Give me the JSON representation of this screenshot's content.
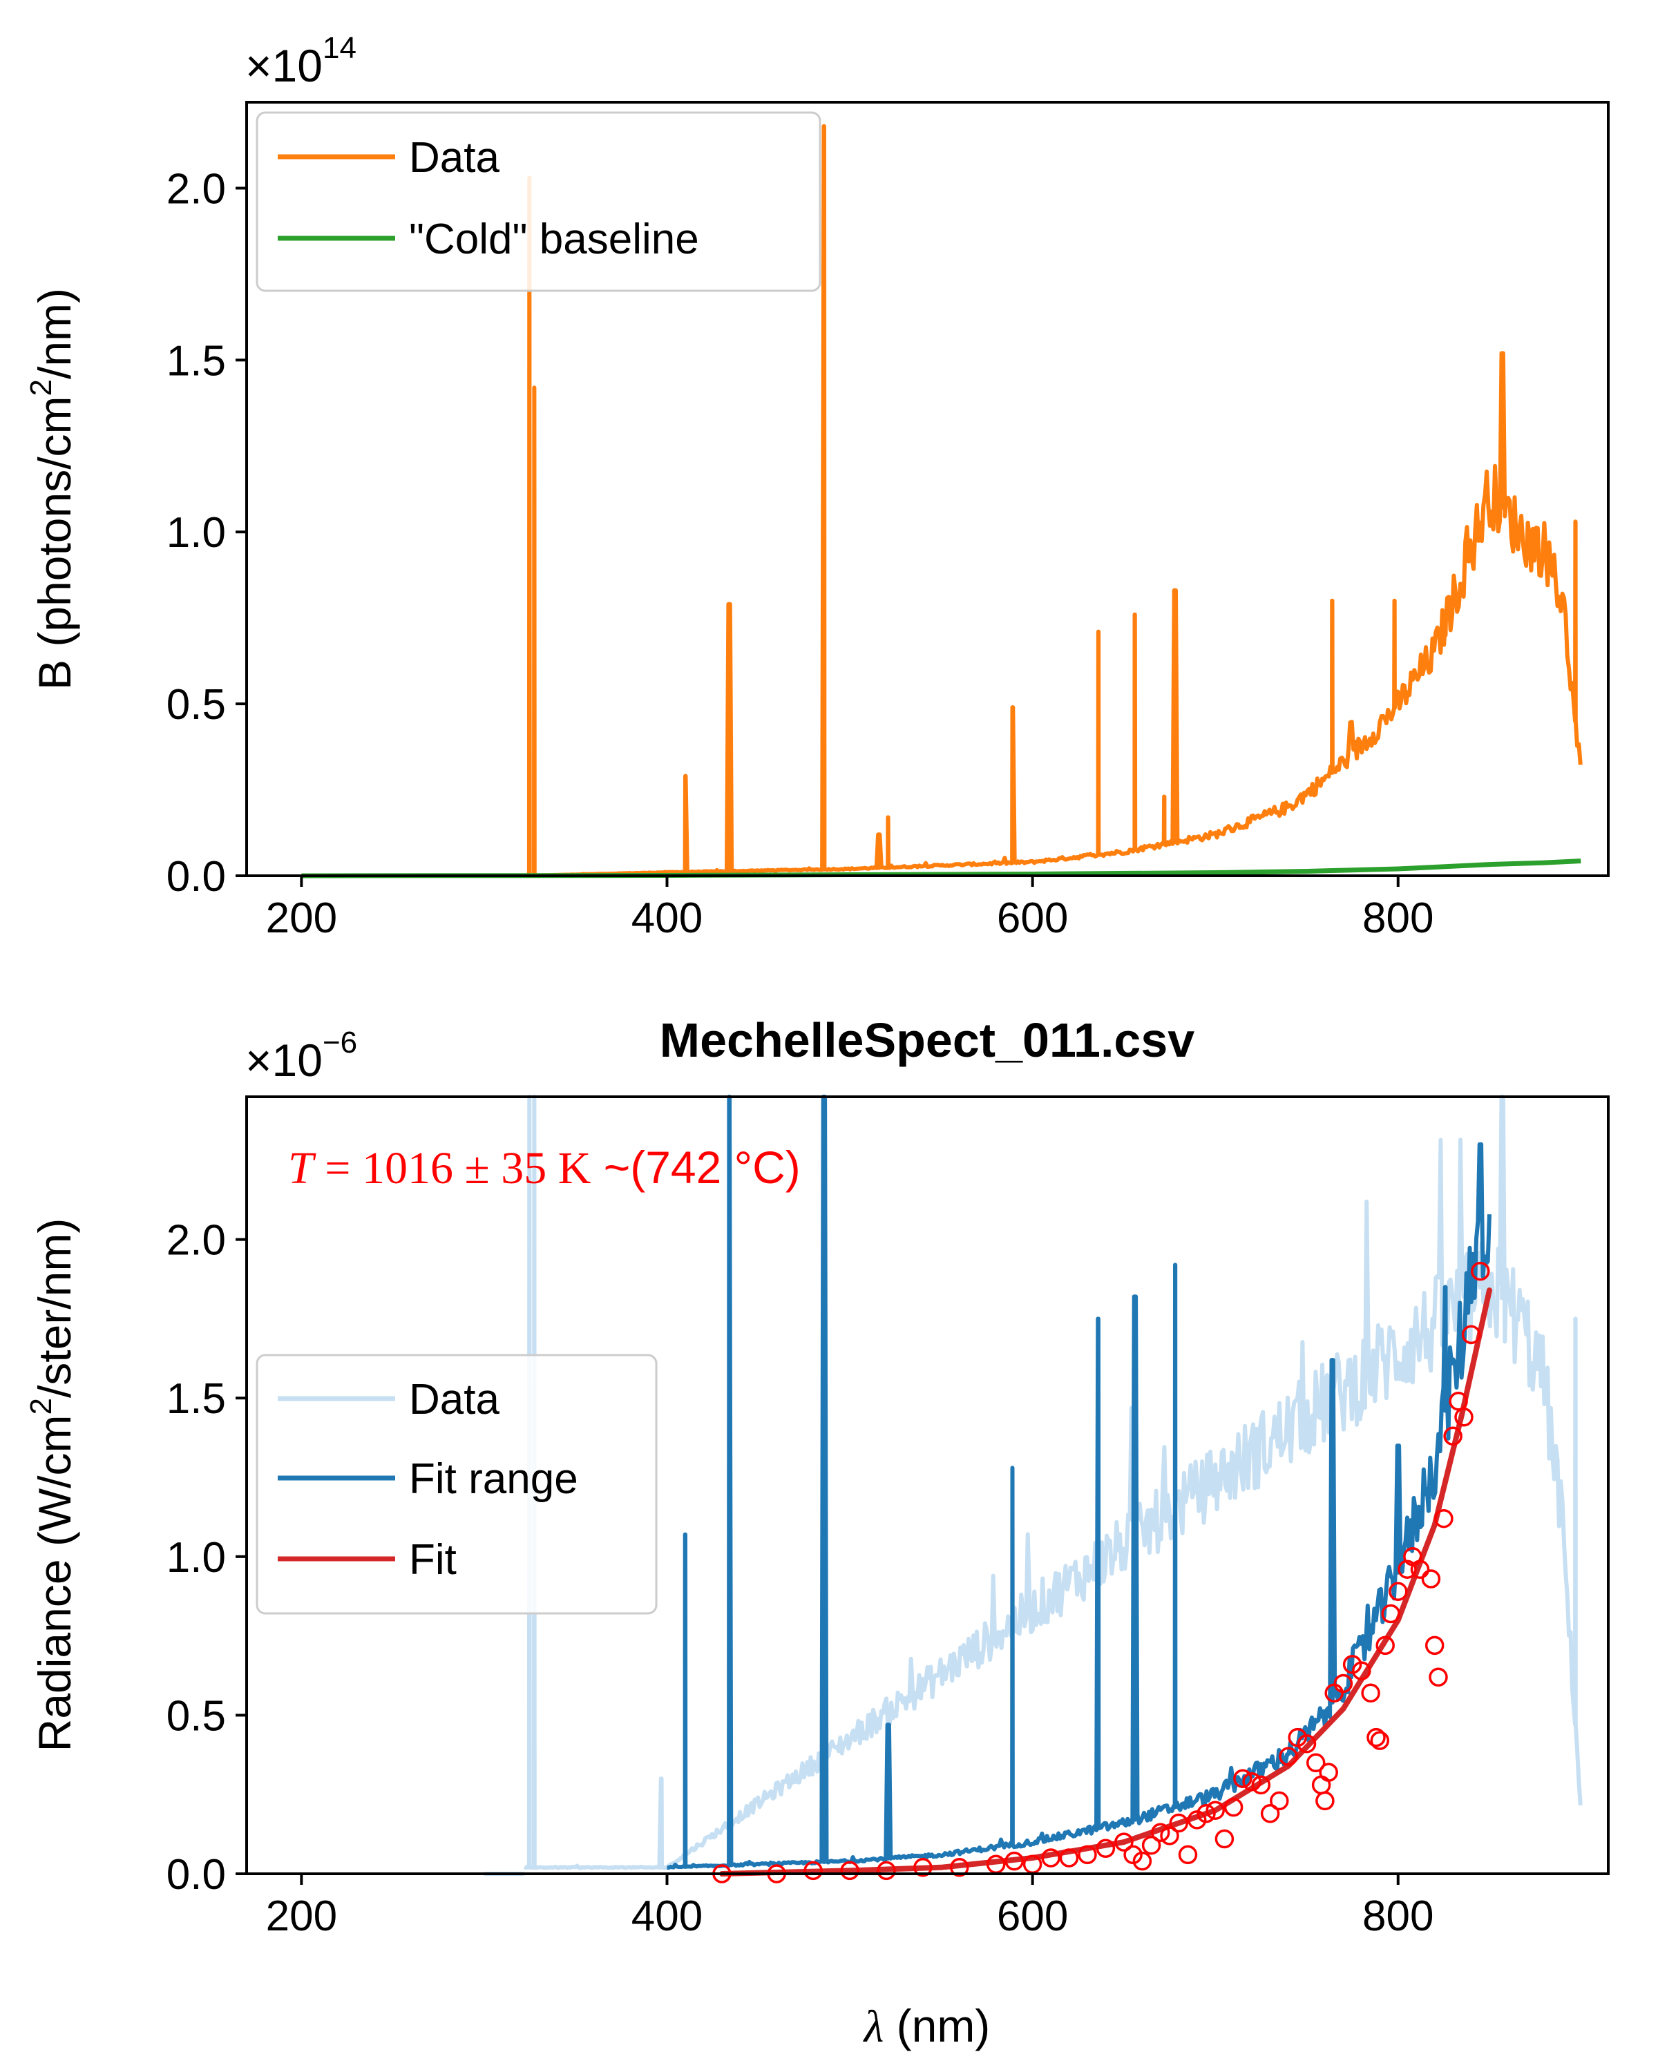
{
  "chart_data": [
    {
      "type": "line",
      "title": "",
      "xlabel": "",
      "ylabel": "B (photons/cm² /nm)",
      "ylabel_parts": [
        "B (photons/cm",
        "2",
        "/nm)"
      ],
      "y_multiplier_label": [
        "×10",
        "14"
      ],
      "xlim": [
        170,
        915
      ],
      "ylim": [
        0,
        2.25
      ],
      "xticks": [
        "200",
        "400",
        "600",
        "800"
      ],
      "yticks": [
        "0.0",
        "0.5",
        "1.0",
        "1.5",
        "2.0"
      ],
      "grid": false,
      "legend_position": "top-left",
      "series": [
        {
          "name": "Data",
          "color": "#ff7f0e",
          "baseline_trend": [
            [
              322,
              0.0
            ],
            [
              400,
              0.01
            ],
            [
              500,
              0.02
            ],
            [
              600,
              0.04
            ],
            [
              650,
              0.07
            ],
            [
              700,
              0.12
            ],
            [
              740,
              0.2
            ],
            [
              760,
              0.28
            ],
            [
              780,
              0.38
            ],
            [
              800,
              0.5
            ],
            [
              820,
              0.65
            ],
            [
              840,
              0.95
            ],
            [
              850,
              1.12
            ],
            [
              860,
              1.05
            ],
            [
              870,
              0.98
            ],
            [
              880,
              0.95
            ],
            [
              890,
              0.8
            ],
            [
              900,
              0.3
            ]
          ],
          "emission_lines": [
            [
              324.7,
              2.03
            ],
            [
              327.4,
              1.42
            ],
            [
              410,
              0.29
            ],
            [
              434,
              0.79
            ],
            [
              486,
              2.18
            ],
            [
              516,
              0.12
            ],
            [
              521,
              0.17
            ],
            [
              589,
              0.49
            ],
            [
              636,
              0.71
            ],
            [
              656,
              0.76
            ],
            [
              672,
              0.23
            ],
            [
              678,
              0.83
            ],
            [
              764,
              0.8
            ],
            [
              798,
              0.8
            ],
            [
              826,
              0.7
            ],
            [
              857,
              1.52
            ],
            [
              897,
              1.03
            ]
          ]
        },
        {
          "name": "\"Cold\" baseline",
          "color": "#2ca02c",
          "points": [
            [
              200,
              0.0
            ],
            [
              400,
              0.001
            ],
            [
              500,
              0.003
            ],
            [
              600,
              0.005
            ],
            [
              700,
              0.009
            ],
            [
              750,
              0.013
            ],
            [
              800,
              0.02
            ],
            [
              850,
              0.033
            ],
            [
              880,
              0.038
            ],
            [
              900,
              0.043
            ]
          ]
        }
      ]
    },
    {
      "type": "line",
      "title": "MechelleSpect_011.csv",
      "xlabel": "λ (nm)",
      "xlabel_parts": [
        "λ",
        " (nm)"
      ],
      "ylabel": "Radiance (W/cm² /ster/nm)",
      "ylabel_parts": [
        "Radiance (W/cm",
        "2",
        "/ster/nm)"
      ],
      "y_multiplier_label": [
        "×10",
        "−6"
      ],
      "xlim": [
        170,
        915
      ],
      "ylim": [
        0,
        2.45
      ],
      "xticks": [
        "200",
        "400",
        "600",
        "800"
      ],
      "yticks": [
        "0.0",
        "0.5",
        "1.0",
        "1.5",
        "2.0"
      ],
      "grid": false,
      "legend_position": "center-left",
      "annotation": {
        "T_symbol": "T",
        "equals": " = ",
        "value": "1016",
        "pm": " ± ",
        "uncertainty": "35",
        "unit": " K",
        "celsius_text": " ~(742 °C)"
      },
      "series": [
        {
          "name": "Data",
          "color": "#c6dff2",
          "baseline_trend": [
            [
              300,
              0.0
            ],
            [
              322,
              0.02
            ],
            [
              400,
              0.02
            ],
            [
              850,
              1.85
            ],
            [
              860,
              1.8
            ],
            [
              870,
              1.7
            ],
            [
              880,
              1.55
            ],
            [
              890,
              1.1
            ],
            [
              900,
              0.2
            ]
          ],
          "emission_lines": [
            [
              324.7,
              2.45
            ],
            [
              327.4,
              2.45
            ],
            [
              397,
              0.3
            ],
            [
              857,
              2.45
            ],
            [
              897,
              1.75
            ]
          ]
        },
        {
          "name": "Fit range",
          "color": "#1f77b4",
          "x_range": [
            400,
            850
          ],
          "baseline_trend": [
            [
              400,
              0.02
            ],
            [
              450,
              0.03
            ],
            [
              500,
              0.04
            ],
            [
              550,
              0.06
            ],
            [
              600,
              0.1
            ],
            [
              650,
              0.16
            ],
            [
              700,
              0.25
            ],
            [
              740,
              0.38
            ],
            [
              760,
              0.5
            ],
            [
              780,
              0.7
            ],
            [
              800,
              0.95
            ],
            [
              820,
              1.3
            ],
            [
              835,
              1.7
            ],
            [
              845,
              2.1
            ],
            [
              850,
              1.95
            ]
          ],
          "emission_lines": [
            [
              410,
              1.07
            ],
            [
              434,
              2.45
            ],
            [
              486,
              2.45
            ],
            [
              521,
              0.47
            ],
            [
              589,
              1.28
            ],
            [
              636,
              1.75
            ],
            [
              656,
              1.82
            ],
            [
              678,
              1.92
            ],
            [
              764,
              1.62
            ],
            [
              800,
              1.35
            ],
            [
              826,
              1.85
            ],
            [
              845,
              2.3
            ]
          ]
        },
        {
          "name": "Fit",
          "color": "#d62728",
          "points": [
            [
              430,
              0.0
            ],
            [
              500,
              0.01
            ],
            [
              550,
              0.02
            ],
            [
              600,
              0.05
            ],
            [
              650,
              0.1
            ],
            [
              700,
              0.2
            ],
            [
              740,
              0.34
            ],
            [
              770,
              0.52
            ],
            [
              800,
              0.8
            ],
            [
              820,
              1.1
            ],
            [
              835,
              1.45
            ],
            [
              850,
              1.84
            ]
          ]
        },
        {
          "name": "Fit points",
          "color": "#ff0000",
          "marker": "open-circle",
          "points": [
            [
              430,
              0.0
            ],
            [
              460,
              0.0
            ],
            [
              480,
              0.01
            ],
            [
              500,
              0.01
            ],
            [
              520,
              0.01
            ],
            [
              540,
              0.02
            ],
            [
              560,
              0.02
            ],
            [
              580,
              0.03
            ],
            [
              590,
              0.04
            ],
            [
              600,
              0.03
            ],
            [
              610,
              0.05
            ],
            [
              620,
              0.05
            ],
            [
              630,
              0.06
            ],
            [
              640,
              0.08
            ],
            [
              650,
              0.1
            ],
            [
              655,
              0.06
            ],
            [
              660,
              0.04
            ],
            [
              665,
              0.09
            ],
            [
              670,
              0.13
            ],
            [
              675,
              0.12
            ],
            [
              680,
              0.16
            ],
            [
              685,
              0.06
            ],
            [
              690,
              0.17
            ],
            [
              695,
              0.19
            ],
            [
              700,
              0.2
            ],
            [
              705,
              0.11
            ],
            [
              710,
              0.21
            ],
            [
              715,
              0.3
            ],
            [
              720,
              0.29
            ],
            [
              725,
              0.28
            ],
            [
              730,
              0.19
            ],
            [
              735,
              0.23
            ],
            [
              740,
              0.37
            ],
            [
              745,
              0.43
            ],
            [
              750,
              0.41
            ],
            [
              755,
              0.35
            ],
            [
              758,
              0.28
            ],
            [
              760,
              0.23
            ],
            [
              762,
              0.32
            ],
            [
              765,
              0.57
            ],
            [
              770,
              0.6
            ],
            [
              775,
              0.66
            ],
            [
              780,
              0.64
            ],
            [
              785,
              0.57
            ],
            [
              788,
              0.43
            ],
            [
              790,
              0.42
            ],
            [
              793,
              0.72
            ],
            [
              796,
              0.82
            ],
            [
              800,
              0.89
            ],
            [
              805,
              0.96
            ],
            [
              808,
              1.0
            ],
            [
              812,
              0.96
            ],
            [
              818,
              0.93
            ],
            [
              820,
              0.72
            ],
            [
              822,
              0.62
            ],
            [
              825,
              1.12
            ],
            [
              830,
              1.38
            ],
            [
              833,
              1.49
            ],
            [
              836,
              1.44
            ],
            [
              840,
              1.7
            ],
            [
              845,
              1.9
            ]
          ]
        }
      ]
    }
  ]
}
